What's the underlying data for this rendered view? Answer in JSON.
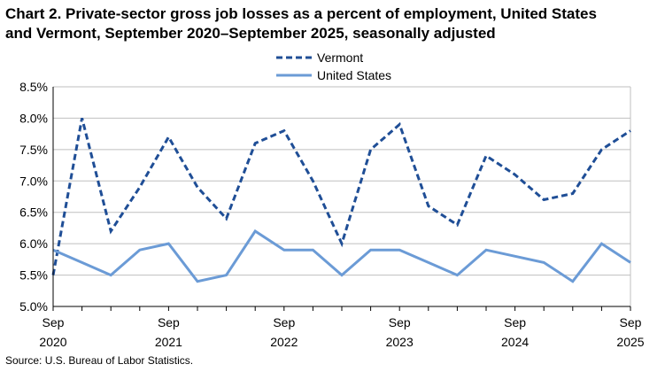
{
  "chart_data": {
    "type": "line",
    "title_line1": "Chart 2. Private-sector gross job losses as a percent of employment, United States",
    "title_line2": "and Vermont, September 2020–September 2025, seasonally adjusted",
    "xlabel": "",
    "ylabel": "",
    "ylim": [
      5.0,
      8.5
    ],
    "y_ticks": [
      "5.0%",
      "5.5%",
      "6.0%",
      "6.5%",
      "7.0%",
      "7.5%",
      "8.0%",
      "8.5%"
    ],
    "grid": true,
    "legend_position": "top-center",
    "x": [
      "Sep 2020",
      "Dec 2020",
      "Mar 2021",
      "Jun 2021",
      "Sep 2021",
      "Dec 2021",
      "Mar 2022",
      "Jun 2022",
      "Sep 2022",
      "Dec 2022",
      "Mar 2023",
      "Jun 2023",
      "Sep 2023",
      "Dec 2023",
      "Mar 2024",
      "Jun 2024",
      "Sep 2024",
      "Dec 2024",
      "Mar 2025",
      "Jun 2025",
      "Sep 2025"
    ],
    "x_tick_labels": [
      {
        "month": "Sep",
        "year": "2020",
        "index": 0
      },
      {
        "month": "Sep",
        "year": "2021",
        "index": 4
      },
      {
        "month": "Sep",
        "year": "2022",
        "index": 8
      },
      {
        "month": "Sep",
        "year": "2023",
        "index": 12
      },
      {
        "month": "Sep",
        "year": "2024",
        "index": 16
      },
      {
        "month": "Sep",
        "year": "2025",
        "index": 20
      }
    ],
    "series": [
      {
        "name": "Vermont",
        "color": "#1f4e96",
        "style": "dashed",
        "values": [
          5.5,
          8.0,
          6.2,
          6.9,
          7.7,
          6.9,
          6.4,
          7.6,
          7.8,
          7.0,
          6.0,
          7.5,
          7.9,
          6.6,
          6.3,
          7.4,
          7.1,
          6.7,
          6.8,
          7.5,
          7.8
        ]
      },
      {
        "name": "United States",
        "color": "#6b9bd6",
        "style": "solid",
        "values": [
          5.9,
          5.7,
          5.5,
          5.9,
          6.0,
          5.4,
          5.5,
          6.2,
          5.9,
          5.9,
          5.5,
          5.9,
          5.9,
          5.7,
          5.5,
          5.9,
          5.8,
          5.7,
          5.4,
          6.0,
          5.7
        ]
      }
    ]
  },
  "source": "Source: U.S. Bureau of Labor Statistics."
}
